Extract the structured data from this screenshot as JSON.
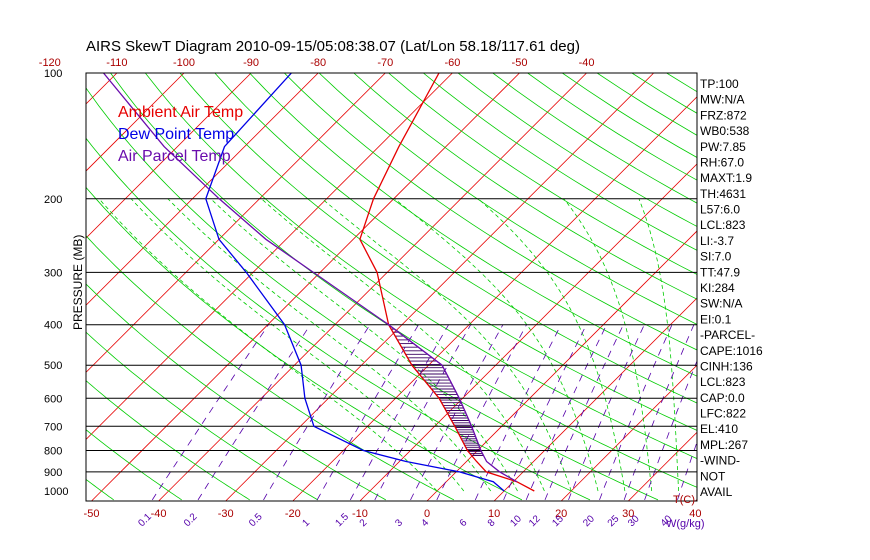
{
  "chart_data": {
    "type": "line",
    "title": "AIRS SkewT Diagram 2010-09-15/05:08:38.07 (Lat/Lon 58.18/117.61 deg)",
    "ylabel": "PRESSURE (MB)",
    "xlabel": "T(C)",
    "mixing_ratio_unit": "W(g/kg)",
    "y_scale": "log",
    "ylim": [
      1000,
      100
    ],
    "pressure_ticks": [
      100,
      200,
      300,
      400,
      500,
      600,
      700,
      800,
      900,
      1000
    ],
    "bottom_temp_ticks": [
      -50,
      -40,
      -30,
      -20,
      -10,
      0,
      10,
      20,
      30,
      40
    ],
    "top_temp_ticks": [
      -120,
      -110,
      -100,
      -90,
      -80,
      -70,
      -60,
      -50,
      -40
    ],
    "mixing_ratio_ticks": [
      "0.1",
      "0.2",
      "0.5",
      "1",
      "1.5",
      "2",
      "3",
      "4",
      "6",
      "8",
      "10",
      "12",
      "15",
      "20",
      "25",
      "30",
      "40"
    ],
    "legend": [
      {
        "name": "Ambient Air Temp",
        "color": "#e60000"
      },
      {
        "name": "Dew Point Temp",
        "color": "#0000e6"
      },
      {
        "name": "Air Parcel Temp",
        "color": "#6a0dad"
      }
    ],
    "series": [
      {
        "name": "Ambient Air Temp",
        "color": "#e60000",
        "pressure": [
          1000,
          950,
          900,
          850,
          800,
          700,
          600,
          500,
          400,
          300,
          250,
          200,
          150,
          100
        ],
        "temp": [
          14.5,
          10.5,
          4.5,
          1.5,
          -1.5,
          -7,
          -13.5,
          -22.5,
          -32,
          -41.5,
          -49,
          -53,
          -57,
          -62
        ]
      },
      {
        "name": "Dew Point Temp",
        "color": "#0000e6",
        "pressure": [
          1000,
          950,
          900,
          850,
          800,
          700,
          600,
          500,
          400,
          300,
          250,
          200,
          150,
          100
        ],
        "temp": [
          10,
          7,
          0.5,
          -9,
          -17,
          -28,
          -33.5,
          -39,
          -47.5,
          -61,
          -70,
          -78,
          -83,
          -84
        ]
      },
      {
        "name": "Air Parcel Temp",
        "color": "#6a0dad",
        "pressure": [
          950,
          900,
          850,
          800,
          700,
          600,
          500,
          400,
          300,
          250,
          200,
          150,
          100
        ],
        "temp": [
          10.5,
          6.5,
          3,
          0.5,
          -4.5,
          -10.5,
          -18,
          -32,
          -51,
          -63,
          -76,
          -92,
          -112
        ]
      }
    ],
    "cape_shading": {
      "from_pressure": 822,
      "to_pressure": 410,
      "color": "#3a0060"
    },
    "side_indices": [
      "TP:100",
      "MW:N/A",
      "FRZ:872",
      "WB0:538",
      "PW:7.85",
      "RH:67.0",
      "MAXT:1.9",
      "TH:4631",
      "L57:6.0",
      "LCL:823",
      "LI:-3.7",
      "SI:7.0",
      "TT:47.9",
      "KI:284",
      "SW:N/A",
      "EI:0.1",
      "-PARCEL-",
      "CAPE:1016",
      "CINH:136",
      "LCL:823",
      "CAP:0.0",
      "LFC:822",
      "EL:410",
      "MPL:267",
      "-WIND-",
      "NOT",
      "AVAIL"
    ],
    "colors": {
      "isotherm": "#e60000",
      "dry_adiabat": "#00cc00",
      "mixing_ratio": "#5500aa",
      "isobar": "#000000",
      "tick_text": "#aa0000",
      "mixing_ratio_text": "#5500aa"
    }
  }
}
